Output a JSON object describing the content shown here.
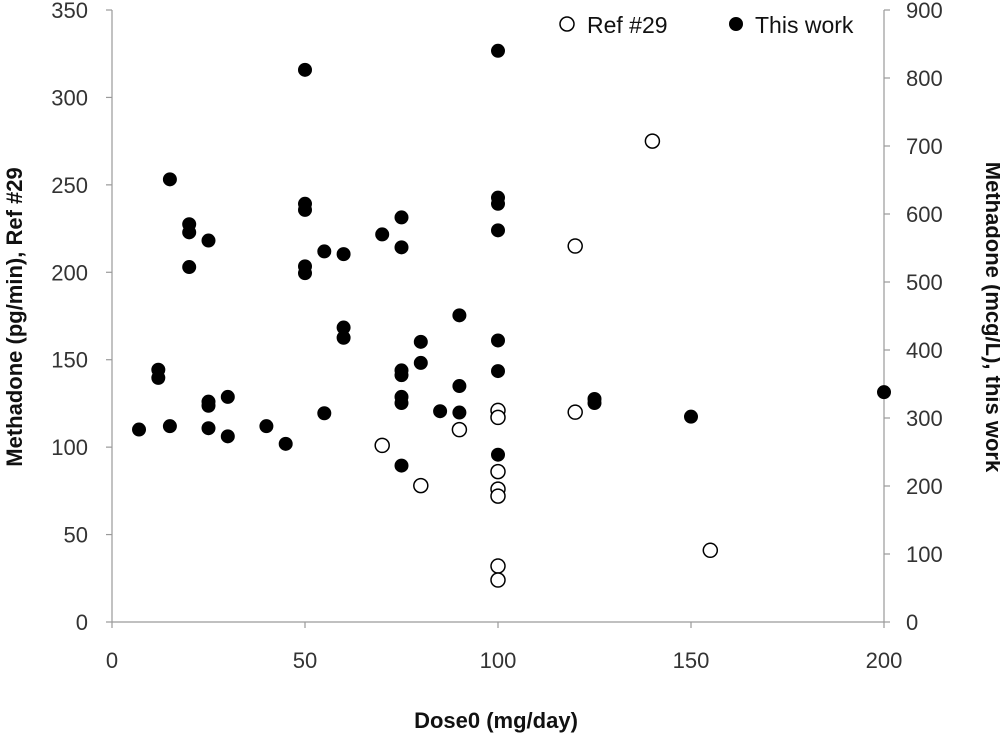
{
  "chart_data": {
    "type": "scatter",
    "xlabel": "Dose0 (mg/day)",
    "ylabel_left": "Methadone (pg/min), Ref #29",
    "ylabel_right": "Methadone (mcg/L), this work",
    "xlim": [
      0,
      200
    ],
    "ylim_left": [
      0,
      350
    ],
    "ylim_right": [
      0,
      900
    ],
    "x_ticks": [
      "0",
      "50",
      "100",
      "150",
      "200"
    ],
    "y_ticks_left": [
      "0",
      "50",
      "100",
      "150",
      "200",
      "250",
      "300",
      "350"
    ],
    "y_ticks_right": [
      "0",
      "100",
      "200",
      "300",
      "400",
      "500",
      "600",
      "700",
      "800",
      "900"
    ],
    "grid": false,
    "legend_position": "top-right",
    "series": [
      {
        "name": "Ref #29",
        "marker": "open-circle",
        "axis": "left",
        "color": "#000000",
        "points": [
          [
            70,
            101
          ],
          [
            80,
            78
          ],
          [
            90,
            110
          ],
          [
            100,
            121
          ],
          [
            100,
            117
          ],
          [
            100,
            86
          ],
          [
            100,
            76
          ],
          [
            100,
            72
          ],
          [
            100,
            32
          ],
          [
            100,
            24
          ],
          [
            120,
            215
          ],
          [
            120,
            120
          ],
          [
            140,
            275
          ],
          [
            155,
            41
          ]
        ]
      },
      {
        "name": "This work",
        "marker": "filled-circle",
        "axis": "right",
        "color": "#000000",
        "points": [
          [
            7,
            283
          ],
          [
            12,
            371
          ],
          [
            12,
            359
          ],
          [
            15,
            651
          ],
          [
            15,
            288
          ],
          [
            20,
            585
          ],
          [
            20,
            573
          ],
          [
            20,
            522
          ],
          [
            25,
            561
          ],
          [
            25,
            324
          ],
          [
            25,
            318
          ],
          [
            25,
            285
          ],
          [
            30,
            331
          ],
          [
            30,
            273
          ],
          [
            40,
            288
          ],
          [
            45,
            262
          ],
          [
            50,
            812
          ],
          [
            50,
            615
          ],
          [
            50,
            606
          ],
          [
            50,
            523
          ],
          [
            50,
            513
          ],
          [
            55,
            545
          ],
          [
            55,
            307
          ],
          [
            60,
            541
          ],
          [
            60,
            433
          ],
          [
            60,
            418
          ],
          [
            70,
            570
          ],
          [
            75,
            595
          ],
          [
            75,
            551
          ],
          [
            75,
            370
          ],
          [
            75,
            363
          ],
          [
            75,
            331
          ],
          [
            75,
            322
          ],
          [
            75,
            230
          ],
          [
            80,
            412
          ],
          [
            80,
            381
          ],
          [
            85,
            310
          ],
          [
            90,
            451
          ],
          [
            90,
            347
          ],
          [
            90,
            308
          ],
          [
            100,
            840
          ],
          [
            100,
            624
          ],
          [
            100,
            615
          ],
          [
            100,
            576
          ],
          [
            100,
            414
          ],
          [
            100,
            369
          ],
          [
            100,
            246
          ],
          [
            125,
            328
          ],
          [
            125,
            322
          ],
          [
            150,
            302
          ],
          [
            200,
            338
          ]
        ]
      }
    ]
  }
}
